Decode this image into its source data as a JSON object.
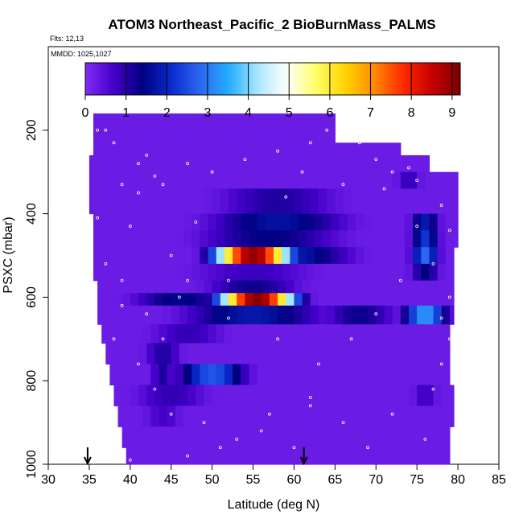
{
  "chart_data": {
    "type": "heatmap",
    "title": "ATOM3 Northeast_Pacific_2 BioBurnMass_PALMS",
    "flights_label": "Flts: 12,13",
    "dates_label": "MMDD: 1025,1027",
    "xlabel": "Latitude (deg N)",
    "ylabel": "PSXC (mbar)",
    "xlim": [
      30,
      85
    ],
    "ylim": [
      1000,
      0
    ],
    "x_ticks": [
      "30",
      "35",
      "40",
      "45",
      "50",
      "55",
      "60",
      "65",
      "70",
      "75",
      "80",
      "85"
    ],
    "y_ticks": [
      "200",
      "400",
      "600",
      "800",
      "1000"
    ],
    "colorbar": {
      "min": 0,
      "max": 9.2,
      "ticks": [
        "0",
        "1",
        "2",
        "3",
        "4",
        "5",
        "6",
        "7",
        "8",
        "9"
      ],
      "colors": [
        "#7f2bf5",
        "#4400c8",
        "#000080",
        "#0b2bcf",
        "#2d68f0",
        "#20b0ff",
        "#aee8ff",
        "#ffffff",
        "#ffff66",
        "#ffd400",
        "#ff8c00",
        "#ff2a00",
        "#c80000",
        "#7a0000"
      ]
    },
    "arrows_lat": [
      34.8,
      61.2
    ],
    "background_value": 0.25,
    "bands": [
      {
        "p_top": 160,
        "p_bot": 230,
        "lat_min": 35.5,
        "lat_max": 65,
        "peaks": []
      },
      {
        "p_top": 230,
        "p_bot": 260,
        "lat_min": 35.5,
        "lat_max": 73,
        "peaks": []
      },
      {
        "p_top": 260,
        "p_bot": 300,
        "lat_min": 35,
        "lat_max": 76.5,
        "peaks": []
      },
      {
        "p_top": 300,
        "p_bot": 340,
        "lat_min": 35,
        "lat_max": 80,
        "peaks": [
          {
            "lat": 74,
            "half": 2,
            "value": 0.9
          }
        ]
      },
      {
        "p_top": 340,
        "p_bot": 400,
        "lat_min": 35,
        "lat_max": 80,
        "peaks": [
          {
            "lat": 58,
            "half": 10,
            "value": 1.1
          }
        ]
      },
      {
        "p_top": 400,
        "p_bot": 440,
        "lat_min": 35.5,
        "lat_max": 80,
        "peaks": [
          {
            "lat": 58,
            "half": 12,
            "value": 1.7
          },
          {
            "lat": 76,
            "half": 2.5,
            "value": 1.8
          }
        ]
      },
      {
        "p_top": 440,
        "p_bot": 480,
        "lat_min": 35.5,
        "lat_max": 80,
        "peaks": [
          {
            "lat": 57,
            "half": 12,
            "value": 1.4
          },
          {
            "lat": 76,
            "half": 2.5,
            "value": 2.2
          }
        ]
      },
      {
        "p_top": 480,
        "p_bot": 520,
        "lat_min": 35.5,
        "lat_max": 79.5,
        "peaks": [
          {
            "lat": 55,
            "half": 7.5,
            "value": 9.0
          },
          {
            "lat": 60,
            "half": 10,
            "value": 1.8
          },
          {
            "lat": 76,
            "half": 2.5,
            "value": 2.8
          }
        ]
      },
      {
        "p_top": 520,
        "p_bot": 560,
        "lat_min": 35.5,
        "lat_max": 79.5,
        "peaks": [
          {
            "lat": 55,
            "half": 10,
            "value": 0.8
          },
          {
            "lat": 76,
            "half": 2.5,
            "value": 1.4
          }
        ]
      },
      {
        "p_top": 560,
        "p_bot": 590,
        "lat_min": 36,
        "lat_max": 79.5,
        "peaks": [
          {
            "lat": 55,
            "half": 8,
            "value": 1.3
          }
        ]
      },
      {
        "p_top": 590,
        "p_bot": 620,
        "lat_min": 36,
        "lat_max": 79.5,
        "peaks": [
          {
            "lat": 55.5,
            "half": 7.5,
            "value": 9.1
          },
          {
            "lat": 46,
            "half": 8,
            "value": 1.5
          }
        ]
      },
      {
        "p_top": 620,
        "p_bot": 665,
        "lat_min": 36,
        "lat_max": 79.5,
        "peaks": [
          {
            "lat": 55,
            "half": 12,
            "value": 1.8
          },
          {
            "lat": 76,
            "half": 4,
            "value": 3.3
          },
          {
            "lat": 68,
            "half": 6,
            "value": 1.3
          }
        ]
      },
      {
        "p_top": 665,
        "p_bot": 710,
        "lat_min": 36.5,
        "lat_max": 79,
        "peaks": [
          {
            "lat": 47,
            "half": 6,
            "value": 0.9
          }
        ]
      },
      {
        "p_top": 710,
        "p_bot": 760,
        "lat_min": 37,
        "lat_max": 79,
        "peaks": [
          {
            "lat": 44,
            "half": 3,
            "value": 1.1
          }
        ]
      },
      {
        "p_top": 760,
        "p_bot": 810,
        "lat_min": 37.5,
        "lat_max": 79,
        "peaks": [
          {
            "lat": 50,
            "half": 6,
            "value": 2.6
          },
          {
            "lat": 44,
            "half": 2,
            "value": 1.1
          }
        ]
      },
      {
        "p_top": 810,
        "p_bot": 860,
        "lat_min": 38,
        "lat_max": 79.5,
        "peaks": [
          {
            "lat": 45,
            "half": 6,
            "value": 0.9
          },
          {
            "lat": 76,
            "half": 2,
            "value": 0.8
          }
        ]
      },
      {
        "p_top": 860,
        "p_bot": 910,
        "lat_min": 38.5,
        "lat_max": 79.5,
        "peaks": [
          {
            "lat": 44,
            "half": 3,
            "value": 0.7
          }
        ]
      },
      {
        "p_top": 910,
        "p_bot": 960,
        "lat_min": 39,
        "lat_max": 79,
        "peaks": []
      },
      {
        "p_top": 960,
        "p_bot": 1000,
        "lat_min": 39.5,
        "lat_max": 79,
        "peaks": []
      }
    ],
    "sample_points": [
      [
        36,
        200
      ],
      [
        37,
        200
      ],
      [
        38,
        230
      ],
      [
        42,
        260
      ],
      [
        43,
        310
      ],
      [
        41,
        350
      ],
      [
        40,
        430
      ],
      [
        45,
        500
      ],
      [
        47,
        560
      ],
      [
        39,
        620
      ],
      [
        38,
        700
      ],
      [
        41,
        760
      ],
      [
        43,
        820
      ],
      [
        45,
        880
      ],
      [
        49,
        900
      ],
      [
        51,
        960
      ],
      [
        56,
        920
      ],
      [
        60,
        960
      ],
      [
        62,
        860
      ],
      [
        66,
        900
      ],
      [
        69,
        960
      ],
      [
        72,
        880
      ],
      [
        76,
        940
      ],
      [
        77,
        820
      ],
      [
        78,
        760
      ],
      [
        79,
        700
      ],
      [
        78,
        650
      ],
      [
        79,
        600
      ],
      [
        77,
        520
      ],
      [
        79,
        440
      ],
      [
        78,
        380
      ],
      [
        75,
        320
      ],
      [
        72,
        300
      ],
      [
        70,
        270
      ],
      [
        68,
        230
      ],
      [
        66,
        210
      ],
      [
        64,
        200
      ],
      [
        62,
        230
      ],
      [
        58,
        250
      ],
      [
        54,
        270
      ],
      [
        50,
        300
      ],
      [
        47,
        280
      ],
      [
        44,
        330
      ],
      [
        48,
        420
      ],
      [
        52,
        560
      ],
      [
        58,
        700
      ],
      [
        63,
        760
      ],
      [
        67,
        700
      ],
      [
        70,
        640
      ],
      [
        73,
        560
      ],
      [
        75,
        430
      ],
      [
        62,
        840
      ],
      [
        57,
        880
      ],
      [
        53,
        940
      ],
      [
        47,
        980
      ],
      [
        40,
        990
      ],
      [
        36,
        410
      ],
      [
        37,
        520
      ],
      [
        39,
        560
      ],
      [
        42,
        640
      ],
      [
        44,
        700
      ],
      [
        61,
        300
      ],
      [
        59,
        360
      ],
      [
        66,
        330
      ],
      [
        71,
        340
      ],
      [
        74,
        290
      ],
      [
        39,
        330
      ],
      [
        41,
        280
      ],
      [
        46,
        600
      ],
      [
        52,
        650
      ]
    ]
  }
}
